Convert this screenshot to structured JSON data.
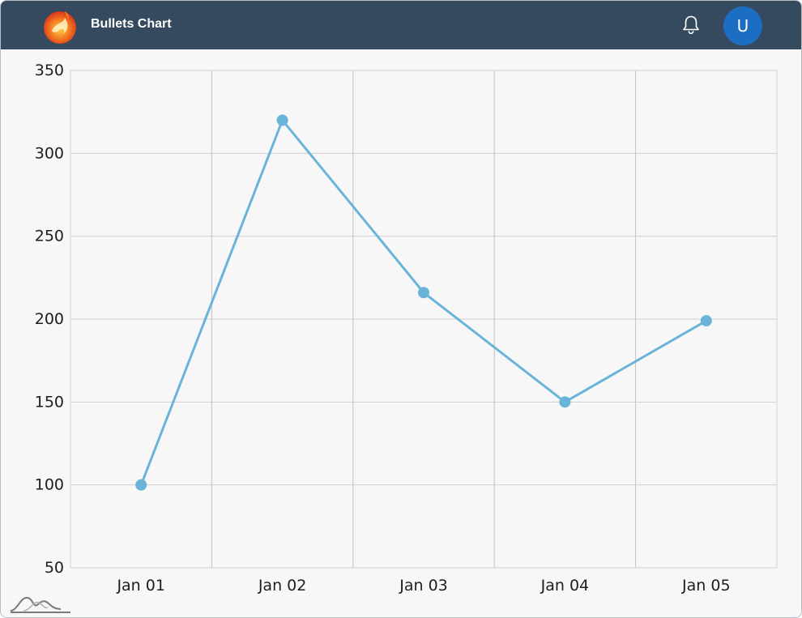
{
  "header": {
    "app_title": "Bullets Chart",
    "avatar_initial": "U",
    "bar_color": "#354a5f",
    "avatar_color": "#1b6ec2",
    "icons": [
      "logo-icon",
      "bell-icon"
    ]
  },
  "chart_data": {
    "type": "line",
    "title": "",
    "xlabel": "",
    "ylabel": "",
    "categories": [
      "Jan 01",
      "Jan 02",
      "Jan 03",
      "Jan 04",
      "Jan 05"
    ],
    "series": [
      {
        "values": [
          100,
          320,
          216,
          150,
          199
        ],
        "color": "#6ab4d9"
      }
    ],
    "ylim": [
      50,
      350
    ],
    "yticks": [
      350,
      300,
      250,
      200,
      150,
      100,
      50
    ],
    "grid": true,
    "legend": "none",
    "marker": "circle"
  }
}
